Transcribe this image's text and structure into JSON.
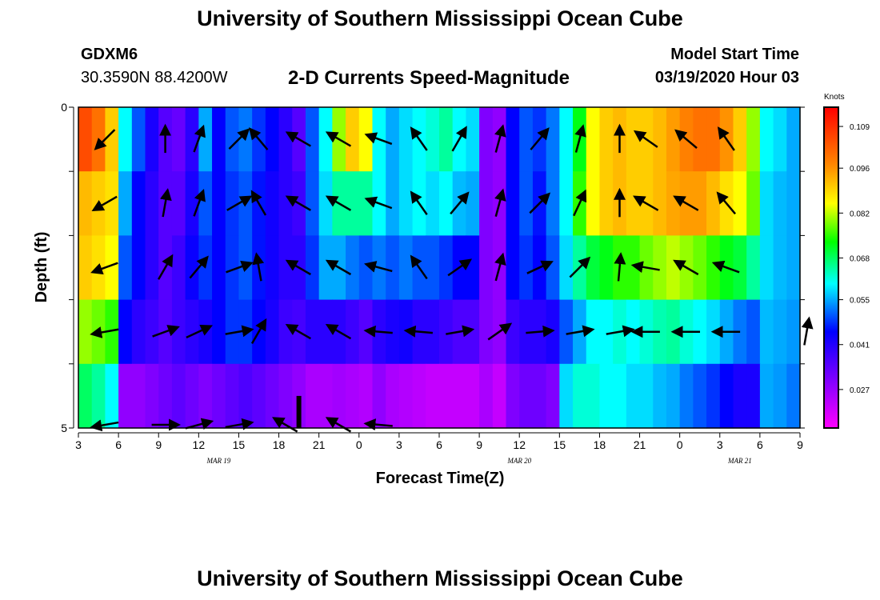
{
  "header": {
    "title": "University of Southern Mississippi Ocean Cube",
    "station": "GDXM6",
    "coordinates": "30.3590N 88.4200W",
    "plot_title": "2-D Currents Speed-Magnitude",
    "model_start_label": "Model Start Time",
    "model_start_value": "03/19/2020 Hour 03"
  },
  "footer": {
    "title": "University of Southern Mississippi Ocean Cube"
  },
  "chart_data": {
    "type": "heatmap",
    "title": "2-D Currents Speed-Magnitude",
    "xlabel": "Forecast Time(Z)",
    "ylabel": "Depth (ft)",
    "colorbar_label": "Knots",
    "colorbar_ticks": [
      "0.109",
      "0.096",
      "0.082",
      "0.068",
      "0.055",
      "0.041",
      "0.027"
    ],
    "colorbar_range": [
      0.015,
      0.115
    ],
    "ylim": [
      0,
      5
    ],
    "y_tick_labels": [
      "0",
      "5"
    ],
    "x_tick_labels": [
      "3",
      "6",
      "9",
      "12",
      "15",
      "18",
      "21",
      "0",
      "3",
      "6",
      "9",
      "12",
      "15",
      "18",
      "21",
      "0",
      "3",
      "6",
      "9"
    ],
    "x_hours": [
      0,
      54
    ],
    "date_labels": [
      {
        "text": "MAR 19",
        "hour": 10.5
      },
      {
        "text": "MAR 20",
        "hour": 33
      },
      {
        "text": "MAR 21",
        "hour": 49.5
      }
    ],
    "depth_bins": 5,
    "speed": [
      [
        0.105,
        0.1,
        0.09,
        0.06,
        0.05,
        0.042,
        0.035,
        0.033,
        0.04,
        0.055,
        0.045,
        0.05,
        0.052,
        0.048,
        0.045,
        0.04,
        0.035,
        0.05,
        0.06,
        0.08,
        0.09,
        0.085,
        0.06,
        0.055,
        0.058,
        0.06,
        0.062,
        0.065,
        0.06,
        0.058,
        0.03,
        0.028,
        0.045,
        0.05,
        0.048,
        0.052,
        0.06,
        0.072,
        0.085,
        0.09,
        0.092,
        0.09,
        0.09,
        0.092,
        0.095,
        0.098,
        0.1,
        0.1,
        0.096,
        0.09,
        0.08,
        0.06,
        0.058,
        0.055
      ],
      [
        0.092,
        0.09,
        0.088,
        0.055,
        0.045,
        0.04,
        0.035,
        0.035,
        0.042,
        0.05,
        0.045,
        0.048,
        0.05,
        0.046,
        0.043,
        0.04,
        0.038,
        0.05,
        0.058,
        0.065,
        0.065,
        0.065,
        0.06,
        0.055,
        0.058,
        0.06,
        0.058,
        0.06,
        0.056,
        0.055,
        0.03,
        0.028,
        0.045,
        0.05,
        0.046,
        0.052,
        0.06,
        0.075,
        0.085,
        0.09,
        0.092,
        0.09,
        0.09,
        0.092,
        0.094,
        0.095,
        0.095,
        0.092,
        0.088,
        0.085,
        0.078,
        0.058,
        0.056,
        0.055
      ],
      [
        0.09,
        0.088,
        0.085,
        0.05,
        0.045,
        0.04,
        0.035,
        0.038,
        0.044,
        0.048,
        0.045,
        0.048,
        0.05,
        0.046,
        0.043,
        0.04,
        0.04,
        0.048,
        0.055,
        0.055,
        0.052,
        0.05,
        0.052,
        0.05,
        0.052,
        0.05,
        0.05,
        0.048,
        0.045,
        0.045,
        0.03,
        0.028,
        0.045,
        0.048,
        0.045,
        0.05,
        0.058,
        0.065,
        0.07,
        0.072,
        0.075,
        0.075,
        0.078,
        0.08,
        0.082,
        0.08,
        0.078,
        0.075,
        0.072,
        0.07,
        0.065,
        0.058,
        0.056,
        0.055
      ],
      [
        0.08,
        0.078,
        0.075,
        0.045,
        0.04,
        0.038,
        0.035,
        0.038,
        0.04,
        0.042,
        0.045,
        0.048,
        0.048,
        0.045,
        0.042,
        0.038,
        0.037,
        0.04,
        0.04,
        0.04,
        0.038,
        0.035,
        0.04,
        0.042,
        0.043,
        0.04,
        0.04,
        0.038,
        0.036,
        0.036,
        0.03,
        0.028,
        0.038,
        0.04,
        0.04,
        0.042,
        0.05,
        0.055,
        0.06,
        0.06,
        0.062,
        0.06,
        0.062,
        0.064,
        0.065,
        0.062,
        0.06,
        0.058,
        0.055,
        0.052,
        0.05,
        0.056,
        0.055,
        0.054
      ],
      [
        0.068,
        0.065,
        0.06,
        0.028,
        0.028,
        0.03,
        0.032,
        0.034,
        0.032,
        0.03,
        0.032,
        0.034,
        0.036,
        0.034,
        0.032,
        0.03,
        0.028,
        0.025,
        0.025,
        0.026,
        0.025,
        0.024,
        0.028,
        0.025,
        0.024,
        0.023,
        0.022,
        0.022,
        0.022,
        0.022,
        0.025,
        0.022,
        0.03,
        0.032,
        0.032,
        0.03,
        0.058,
        0.062,
        0.062,
        0.06,
        0.06,
        0.058,
        0.058,
        0.056,
        0.055,
        0.052,
        0.05,
        0.048,
        0.045,
        0.042,
        0.042,
        0.055,
        0.054,
        0.052
      ]
    ],
    "vectors": [
      [
        [
          1.5,
          225
        ],
        [
          6,
          0
        ],
        [
          8.5,
          20
        ],
        [
          11.5,
          45
        ],
        [
          13,
          320
        ],
        [
          16,
          300
        ],
        [
          19,
          300
        ],
        [
          22,
          290
        ],
        [
          25,
          325
        ],
        [
          28,
          30
        ],
        [
          31,
          15
        ],
        [
          34,
          40
        ],
        [
          37,
          15
        ],
        [
          40,
          0
        ],
        [
          42,
          305
        ],
        [
          45,
          310
        ],
        [
          48,
          325
        ]
      ],
      [
        [
          1.5,
          240
        ],
        [
          6,
          10
        ],
        [
          8.5,
          20
        ],
        [
          11.5,
          60
        ],
        [
          13,
          330
        ],
        [
          16,
          300
        ],
        [
          19,
          300
        ],
        [
          22,
          290
        ],
        [
          25,
          325
        ],
        [
          28,
          40
        ],
        [
          31,
          15
        ],
        [
          34,
          45
        ],
        [
          37,
          25
        ],
        [
          40,
          0
        ],
        [
          42,
          300
        ],
        [
          45,
          300
        ],
        [
          48,
          320
        ]
      ],
      [
        [
          1.5,
          250
        ],
        [
          6,
          30
        ],
        [
          8.5,
          40
        ],
        [
          11.5,
          70
        ],
        [
          13,
          350
        ],
        [
          16,
          300
        ],
        [
          19,
          300
        ],
        [
          22,
          285
        ],
        [
          25,
          325
        ],
        [
          28,
          55
        ],
        [
          31,
          15
        ],
        [
          34,
          65
        ],
        [
          37,
          45
        ],
        [
          40,
          5
        ],
        [
          42,
          280
        ],
        [
          45,
          300
        ],
        [
          48,
          290
        ]
      ],
      [
        [
          1.5,
          260
        ],
        [
          6,
          70
        ],
        [
          8.5,
          65
        ],
        [
          11.5,
          80
        ],
        [
          13,
          30
        ],
        [
          16,
          300
        ],
        [
          19,
          300
        ],
        [
          22,
          275
        ],
        [
          25,
          275
        ],
        [
          28,
          80
        ],
        [
          31,
          55
        ],
        [
          34,
          85
        ],
        [
          37,
          80
        ],
        [
          40,
          80
        ],
        [
          42,
          270
        ],
        [
          45,
          270
        ],
        [
          48,
          270
        ],
        [
          54,
          10
        ]
      ],
      [
        [
          1.5,
          260
        ],
        [
          6,
          90
        ],
        [
          8.5,
          75
        ],
        [
          11.5,
          80
        ],
        [
          15,
          300
        ],
        [
          19,
          300
        ],
        [
          22,
          275
        ]
      ]
    ],
    "marker": {
      "hour": 16.5,
      "depth_from": 4.5,
      "depth_to": 5
    }
  }
}
